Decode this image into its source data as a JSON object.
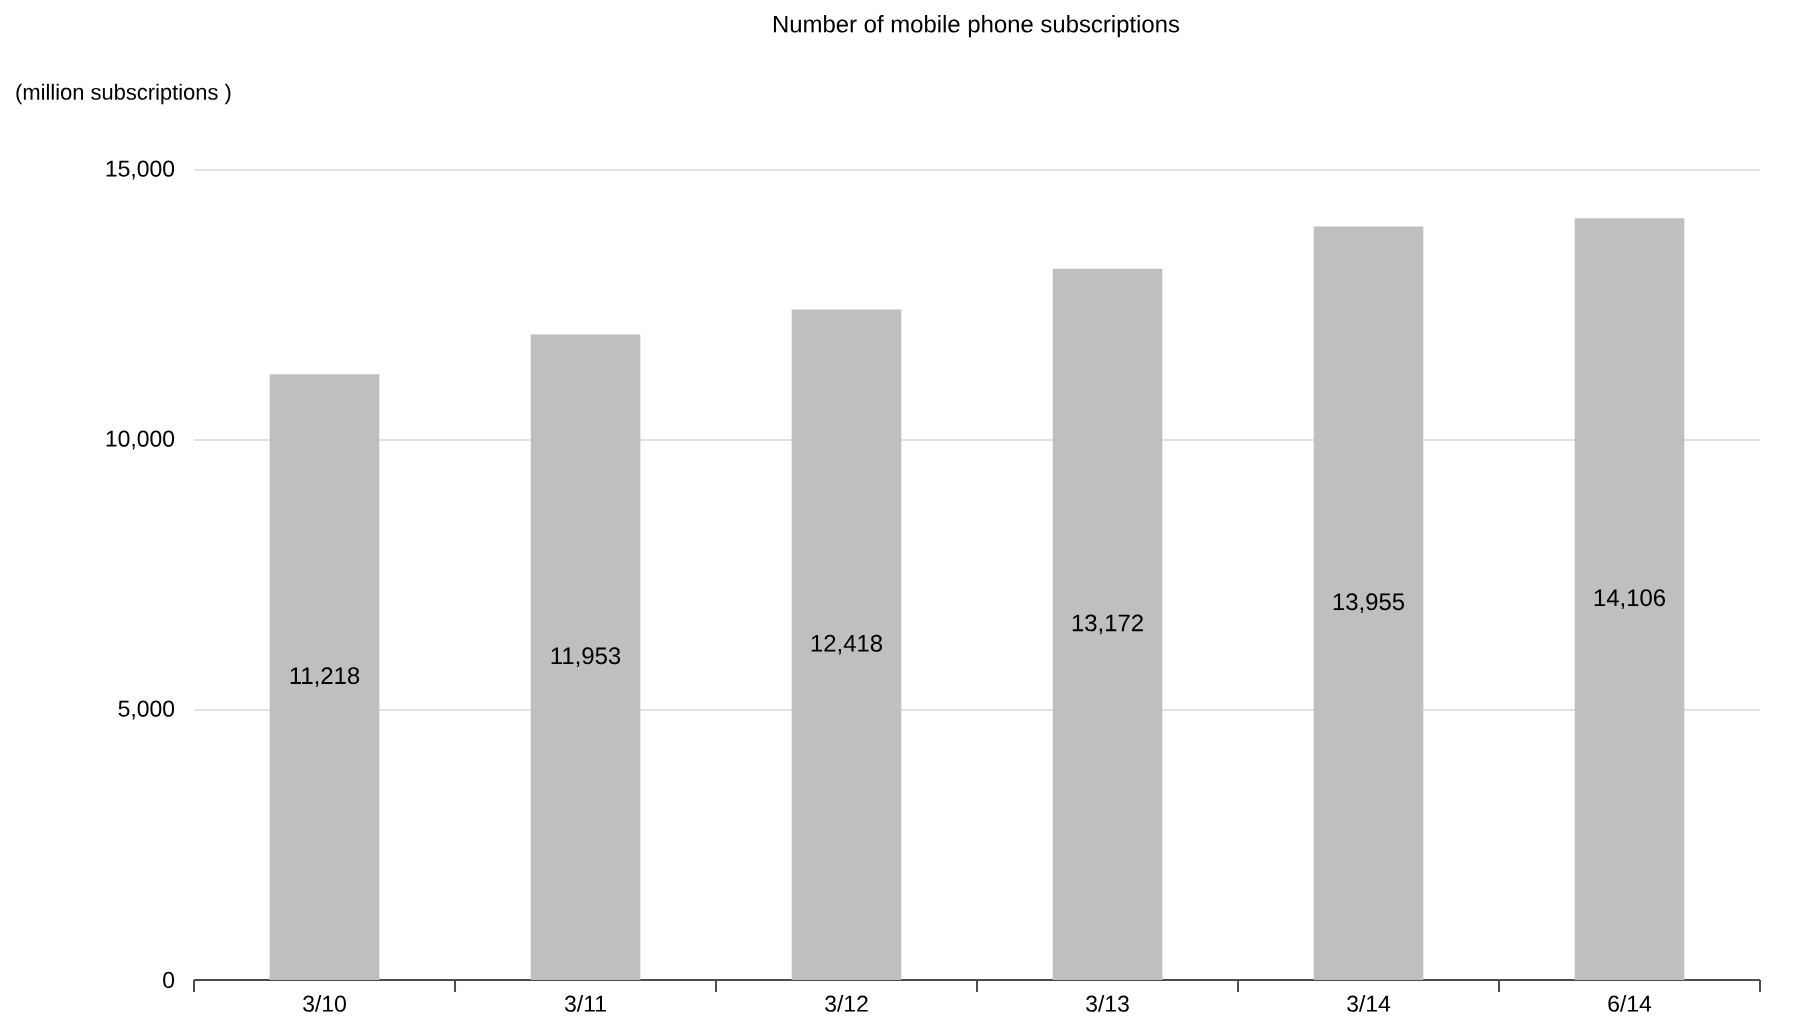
{
  "chart_data": {
    "type": "bar",
    "title": "Number of mobile phone subscriptions",
    "ylabel": "(million subscriptions )",
    "categories": [
      "3/10",
      "3/11",
      "3/12",
      "3/13",
      "3/14",
      "6/14"
    ],
    "values": [
      11218,
      11953,
      12418,
      13172,
      13955,
      14106
    ],
    "value_labels": [
      "11,218",
      "11,953",
      "12,418",
      "13,172",
      "13,955",
      "14,106"
    ],
    "color": "#bfbfbf",
    "ylim": [
      0,
      15000
    ],
    "yticks": [
      {
        "value": 0,
        "label": "0"
      },
      {
        "value": 5000,
        "label": "5,000"
      },
      {
        "value": 10000,
        "label": "10,000"
      },
      {
        "value": 15000,
        "label": "15,000"
      }
    ],
    "grid": "y"
  }
}
